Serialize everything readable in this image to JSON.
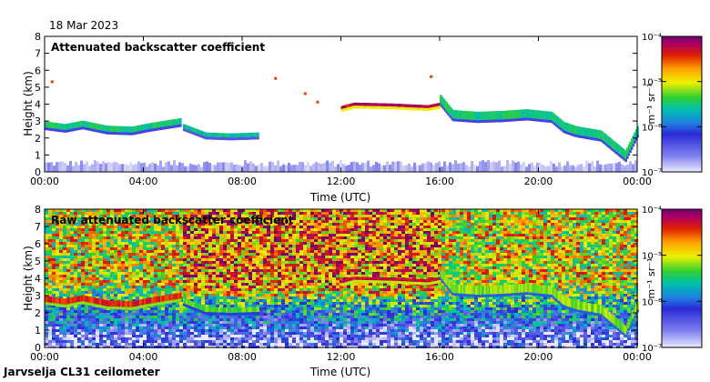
{
  "date": "18 Mar 2023",
  "footer": "Jarvselja CL31 ceilometer",
  "chart_data": [
    {
      "type": "heatmap",
      "title": "Attenuated backscatter coefficient",
      "xlabel": "Time (UTC)",
      "ylabel": "Height (km)",
      "xlim": [
        0,
        24
      ],
      "ylim": [
        0,
        8
      ],
      "xticks": [
        "00:00",
        "04:00",
        "08:00",
        "12:00",
        "16:00",
        "20:00",
        "00:00"
      ],
      "yticks": [
        "0",
        "1",
        "2",
        "3",
        "4",
        "5",
        "6",
        "7",
        "8"
      ],
      "color_scale": {
        "label": "m⁻¹ sr⁻¹",
        "ticks": [
          "10⁻⁷",
          "10⁻⁶",
          "10⁻⁵",
          "10⁻⁴"
        ],
        "log_range": [
          -7,
          -4
        ]
      },
      "surface_layer": {
        "top_km": 0.5,
        "log_value": -6.8
      },
      "layers": [
        {
          "name": "low-cloud-1",
          "points": [
            [
              0,
              2.8
            ],
            [
              0.8,
              2.65
            ],
            [
              1.5,
              2.85
            ],
            [
              2.5,
              2.55
            ],
            [
              3.5,
              2.5
            ],
            [
              4.2,
              2.7
            ],
            [
              5.5,
              3.0
            ]
          ],
          "thickness_km": 0.35,
          "log_value": -5.5
        },
        {
          "name": "low-cloud-2",
          "points": [
            [
              5.6,
              2.7
            ],
            [
              6.5,
              2.2
            ],
            [
              7.5,
              2.15
            ],
            [
              8.6,
              2.2
            ]
          ],
          "thickness_km": 0.25,
          "log_value": -5.6
        },
        {
          "name": "mid-cloud",
          "points": [
            [
              12.0,
              3.8
            ],
            [
              12.5,
              4.0
            ],
            [
              14.0,
              3.95
            ],
            [
              15.5,
              3.85
            ],
            [
              16.0,
              4.0
            ]
          ],
          "thickness_km": 0.18,
          "log_value": -4.2
        },
        {
          "name": "afternoon-cloud",
          "points": [
            [
              16.0,
              4.3
            ],
            [
              16.5,
              3.4
            ],
            [
              17.5,
              3.3
            ],
            [
              18.5,
              3.35
            ],
            [
              19.5,
              3.45
            ],
            [
              20.5,
              3.3
            ],
            [
              21.0,
              2.7
            ],
            [
              21.5,
              2.45
            ],
            [
              22.5,
              2.2
            ],
            [
              23.5,
              1.0
            ],
            [
              24.0,
              2.5
            ]
          ],
          "thickness_km": 0.5,
          "log_value": -5.5
        }
      ],
      "scattered_points": [
        [
          0.25,
          5.4
        ],
        [
          9.3,
          5.6
        ],
        [
          10.5,
          4.7
        ],
        [
          11.0,
          4.2
        ],
        [
          12.2,
          4.0
        ],
        [
          15.6,
          5.7
        ]
      ]
    },
    {
      "type": "heatmap",
      "title": "Raw attenuated backscatter coefficient",
      "xlabel": "Time (UTC)",
      "ylabel": "Height (km)",
      "xlim": [
        0,
        24
      ],
      "ylim": [
        0,
        8
      ],
      "xticks": [
        "00:00",
        "04:00",
        "08:00",
        "12:00",
        "16:00",
        "20:00",
        "00:00"
      ],
      "yticks": [
        "0",
        "1",
        "2",
        "3",
        "4",
        "5",
        "6",
        "7",
        "8"
      ],
      "color_scale": {
        "label": "m⁻¹ sr⁻¹",
        "ticks": [
          "10⁻⁷",
          "10⁻⁶",
          "10⁻⁵",
          "10⁻⁴"
        ],
        "log_range": [
          -7,
          -4
        ]
      },
      "background_noise": {
        "low_log_value": -6.6,
        "high_log_value": -5.0,
        "noisier_hours": [
          5.5,
          16.0
        ]
      },
      "layers": [
        {
          "name": "low-cloud-1",
          "points": [
            [
              0,
              2.8
            ],
            [
              0.8,
              2.65
            ],
            [
              1.5,
              2.85
            ],
            [
              2.5,
              2.55
            ],
            [
              3.5,
              2.5
            ],
            [
              4.2,
              2.7
            ],
            [
              5.5,
              3.0
            ]
          ],
          "thickness_km": 0.35,
          "log_value": -4.4
        },
        {
          "name": "low-cloud-2",
          "points": [
            [
              5.6,
              2.7
            ],
            [
              6.5,
              2.2
            ],
            [
              7.5,
              2.15
            ],
            [
              8.6,
              2.2
            ]
          ],
          "thickness_km": 0.3,
          "log_value": -5.3
        },
        {
          "name": "mid-cloud",
          "points": [
            [
              12.0,
              3.8
            ],
            [
              12.5,
              4.0
            ],
            [
              14.0,
              3.95
            ],
            [
              15.5,
              3.85
            ],
            [
              16.0,
              4.0
            ]
          ],
          "thickness_km": 0.18,
          "log_value": -4.3
        },
        {
          "name": "afternoon-cloud",
          "points": [
            [
              16.0,
              4.3
            ],
            [
              16.5,
              3.4
            ],
            [
              17.5,
              3.3
            ],
            [
              18.5,
              3.35
            ],
            [
              19.5,
              3.45
            ],
            [
              20.5,
              3.3
            ],
            [
              21.0,
              2.7
            ],
            [
              21.5,
              2.45
            ],
            [
              22.5,
              2.2
            ],
            [
              23.5,
              1.0
            ],
            [
              24.0,
              2.5
            ]
          ],
          "thickness_km": 0.5,
          "log_value": -5.2
        }
      ]
    }
  ]
}
